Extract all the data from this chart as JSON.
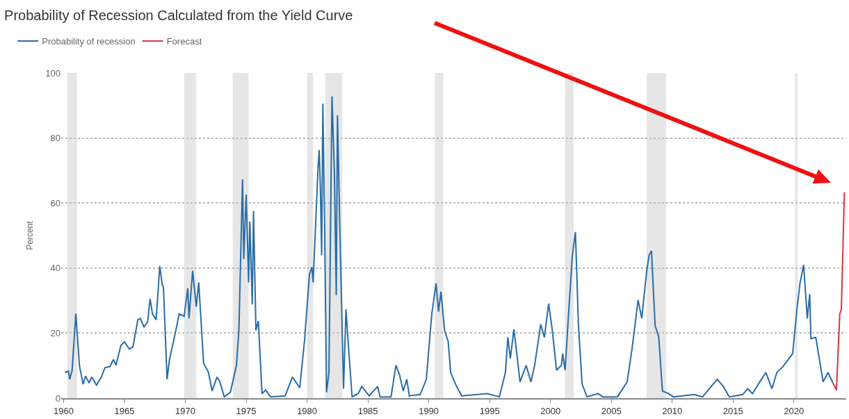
{
  "chart_data": {
    "type": "line",
    "title": "Probability of Recession Calculated from the Yield Curve",
    "ylabel": "Percent",
    "xlim": [
      1959.8,
      2024.3
    ],
    "xticks": [
      1960,
      1965,
      1970,
      1975,
      1980,
      1985,
      1990,
      1995,
      2000,
      2005,
      2010,
      2015,
      2020
    ],
    "ylim": [
      0,
      100
    ],
    "yticks": [
      0,
      20,
      40,
      60,
      80,
      100
    ],
    "grid": "y",
    "legend": "top left",
    "marker": "none",
    "line_style": "solid",
    "bands": [
      {
        "axis": "x",
        "from": 1960.3,
        "to": 1961.1,
        "color": "#e6e6e6"
      },
      {
        "axis": "x",
        "from": 1969.9,
        "to": 1970.9,
        "color": "#e6e6e6"
      },
      {
        "axis": "x",
        "from": 1973.9,
        "to": 1975.2,
        "color": "#e6e6e6"
      },
      {
        "axis": "x",
        "from": 1980.0,
        "to": 1980.5,
        "color": "#e6e6e6"
      },
      {
        "axis": "x",
        "from": 1981.5,
        "to": 1982.9,
        "color": "#e6e6e6"
      },
      {
        "axis": "x",
        "from": 1990.5,
        "to": 1991.2,
        "color": "#e6e6e6"
      },
      {
        "axis": "x",
        "from": 2001.2,
        "to": 2001.9,
        "color": "#e6e6e6"
      },
      {
        "axis": "x",
        "from": 2007.9,
        "to": 2009.5,
        "color": "#e6e6e6"
      },
      {
        "axis": "x",
        "from": 2020.1,
        "to": 2020.3,
        "color": "#e6e6e6"
      }
    ],
    "series": [
      {
        "name": "Probability of recession",
        "color": "#2a6ca6",
        "x": [
          1960.1,
          1960.4,
          1960.5,
          1960.7,
          1961.0,
          1961.3,
          1961.6,
          1961.8,
          1962.1,
          1962.3,
          1962.7,
          1963.1,
          1963.4,
          1963.8,
          1964.1,
          1964.3,
          1964.7,
          1965.0,
          1965.4,
          1965.7,
          1966.1,
          1966.3,
          1966.6,
          1966.9,
          1967.1,
          1967.3,
          1967.6,
          1967.9,
          1968.1,
          1968.2,
          1968.5,
          1968.7,
          1969.1,
          1969.5,
          1969.9,
          1970.2,
          1970.3,
          1970.6,
          1970.9,
          1971.1,
          1971.5,
          1971.9,
          1972.2,
          1972.6,
          1972.8,
          1973.2,
          1973.7,
          1974.2,
          1974.4,
          1974.7,
          1974.8,
          1975.0,
          1975.2,
          1975.3,
          1975.5,
          1975.6,
          1975.8,
          1976.0,
          1976.3,
          1976.6,
          1977.0,
          1978.2,
          1978.8,
          1979.4,
          1979.8,
          1980.2,
          1980.4,
          1980.5,
          1980.9,
          1981.0,
          1981.1,
          1981.2,
          1981.3,
          1981.45,
          1981.6,
          1981.8,
          1982.05,
          1982.25,
          1982.4,
          1982.5,
          1982.7,
          1983.0,
          1983.2,
          1983.35,
          1983.7,
          1984.2,
          1984.5,
          1985.1,
          1985.8,
          1986.0,
          1986.9,
          1987.3,
          1987.6,
          1987.9,
          1988.2,
          1988.4,
          1989.3,
          1989.8,
          1990.25,
          1990.6,
          1990.8,
          1991.0,
          1991.3,
          1991.6,
          1991.8,
          1992.2,
          1992.7,
          1994.8,
          1995.8,
          1996.3,
          1996.5,
          1996.7,
          1997.0,
          1997.5,
          1998.0,
          1998.4,
          1998.7,
          1999.2,
          1999.5,
          1999.85,
          2000.15,
          2000.5,
          2000.9,
          2001.0,
          2001.2,
          2001.5,
          2001.8,
          2002.05,
          2002.3,
          2002.6,
          2003.0,
          2003.9,
          2004.3,
          2005.5,
          2006.3,
          2006.7,
          2007.2,
          2007.5,
          2007.9,
          2008.1,
          2008.3,
          2008.6,
          2008.9,
          2009.2,
          2009.7,
          2010.1,
          2011.8,
          2012.5,
          2012.9,
          2013.7,
          2014.2,
          2014.7,
          2015.8,
          2016.2,
          2016.6,
          2017.2,
          2017.7,
          2018.2,
          2018.6,
          2019.1,
          2019.9,
          2020.25,
          2020.5,
          2020.8,
          2021.1,
          2021.3,
          2021.4,
          2021.8,
          2022.4,
          2022.8,
          2023.2
        ],
        "values": [
          7.9,
          8.3,
          5.8,
          8.6,
          26,
          10,
          4.3,
          6.8,
          4.7,
          6.5,
          4,
          6.5,
          9.4,
          9.7,
          11.9,
          10.1,
          16.2,
          17.3,
          15.1,
          15.8,
          24.1,
          24.5,
          21.9,
          23.4,
          30.6,
          25.9,
          24.1,
          40.6,
          34.9,
          34.2,
          5.8,
          11.9,
          18.7,
          25.9,
          25.2,
          33.8,
          24.5,
          39.2,
          28.1,
          35.6,
          10.8,
          7.9,
          2.2,
          6.5,
          5.4,
          0.4,
          1.8,
          10.1,
          20.9,
          67.3,
          42.8,
          62.6,
          35.6,
          54.3,
          28.8,
          57.6,
          20.9,
          23.7,
          1.4,
          2.5,
          0.4,
          0.7,
          6.5,
          3.2,
          18,
          38.1,
          40.3,
          35.6,
          70.5,
          76.3,
          64,
          43.9,
          90.6,
          51,
          1.8,
          7.9,
          92.8,
          69,
          31.7,
          87,
          51,
          2.9,
          27.3,
          18.7,
          0.4,
          1.4,
          3.6,
          0.7,
          3.6,
          0.4,
          0.4,
          10.1,
          7.2,
          2.2,
          5.8,
          0.7,
          1.1,
          5.8,
          25.9,
          35.3,
          26.6,
          32.7,
          20.9,
          17.3,
          7.9,
          4.3,
          0.7,
          1.4,
          0.4,
          7.9,
          18.7,
          12.2,
          21.2,
          5,
          10.1,
          5,
          10.1,
          22.7,
          18.7,
          29.1,
          20.9,
          8.6,
          10.1,
          13.7,
          8.6,
          26.6,
          43.9,
          51.1,
          22.3,
          4.3,
          0.4,
          1.4,
          0.4,
          0.4,
          5,
          15.1,
          30.2,
          24.5,
          38.8,
          43.9,
          45.3,
          22.3,
          18.7,
          2.2,
          1.4,
          0.4,
          1.1,
          0.4,
          2.2,
          5.8,
          3.6,
          0.4,
          1.1,
          2.9,
          1.4,
          5,
          7.9,
          2.9,
          7.9,
          9.7,
          13.7,
          27.3,
          35.3,
          41,
          24.5,
          32,
          18.3,
          18.7,
          5,
          7.9,
          4.7
        ]
      },
      {
        "name": "Forecast",
        "color": "#d9343f",
        "x": [
          2023.2,
          2023.5,
          2023.77,
          2023.9,
          2024.15
        ],
        "values": [
          4.7,
          2.5,
          25.9,
          27.3,
          63.3
        ]
      }
    ]
  }
}
